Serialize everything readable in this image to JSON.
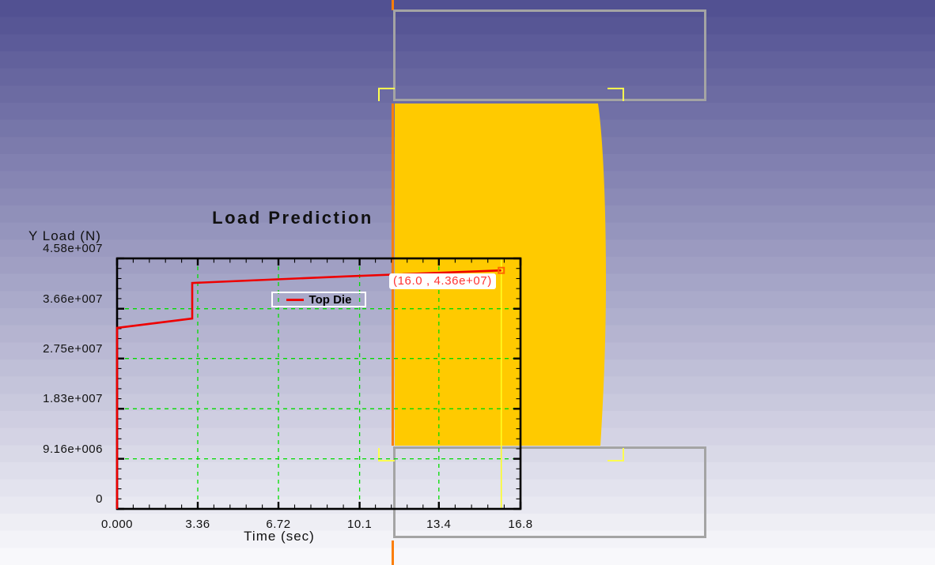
{
  "app": {
    "description_label": "forging simulation viewport with load prediction chart overlay"
  },
  "colors": {
    "background_top": "#525192",
    "background_bottom": "#f8f8fb",
    "workpiece": "#ffca00",
    "die_outline": "#a4a4a4",
    "symmetry_line": "#fb7e08",
    "bracket": "#ffff4f",
    "grid": "#00dd00",
    "curve": "#ee0000",
    "tracker": "#ffff22",
    "marker": "#ff6600",
    "annotation_text": "#ff3333",
    "annotation_bg": "#ffffff",
    "legend_border": "#ffffff",
    "frame": "#000000",
    "text": "#111111"
  },
  "chart_data": {
    "type": "line",
    "title": "Load Prediction",
    "xlabel": "Time (sec)",
    "ylabel": "Y Load (N)",
    "xlim": [
      0,
      16.8
    ],
    "ylim": [
      0,
      45800000
    ],
    "x_ticks": [
      "0.000",
      "3.36",
      "6.72",
      "10.1",
      "13.4",
      "16.8"
    ],
    "x_tick_values": [
      0,
      3.36,
      6.72,
      10.1,
      13.4,
      16.8
    ],
    "y_ticks": [
      "0",
      "9.16e+006",
      "1.83e+007",
      "2.75e+007",
      "3.66e+007",
      "4.58e+007"
    ],
    "y_tick_values": [
      0,
      9160000,
      18300000,
      27500000,
      36600000,
      45800000
    ],
    "grid": true,
    "minor_ticks_per_division": 5,
    "legend_position": "inside-center-left",
    "series": [
      {
        "name": "Top Die",
        "color": "#ee0000",
        "points": [
          [
            0,
            0
          ],
          [
            0,
            33100000
          ],
          [
            3.13,
            34800000
          ],
          [
            3.13,
            41300000
          ],
          [
            9.5,
            42500000
          ],
          [
            16.0,
            43600000
          ]
        ]
      }
    ],
    "annotation": {
      "text": "(16.0 , 4.36e+07)",
      "x": 16.0,
      "y": 43600000
    },
    "tracker_x": 16.0
  }
}
